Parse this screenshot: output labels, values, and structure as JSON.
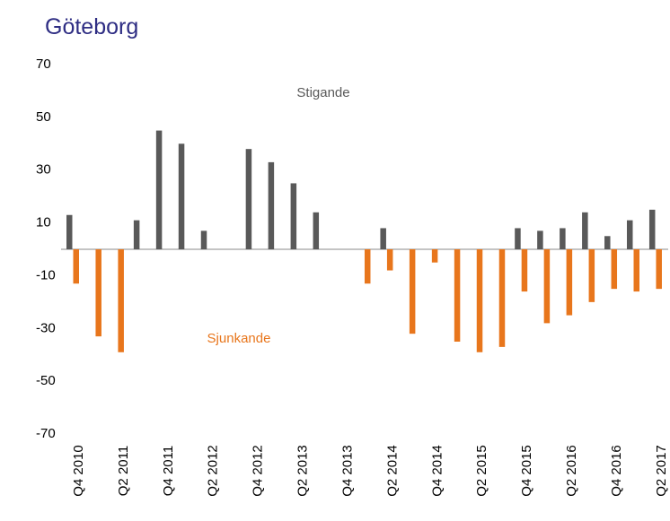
{
  "chart_data": {
    "type": "bar",
    "title": "Göteborg",
    "categories": [
      "Q4 2010",
      null,
      "Q2 2011",
      null,
      "Q4 2011",
      null,
      "Q2 2012",
      null,
      "Q4 2012",
      null,
      "Q2 2013",
      null,
      "Q4 2013",
      null,
      "Q2 2014",
      null,
      "Q4 2014",
      null,
      "Q2 2015",
      null,
      "Q4 2015",
      null,
      "Q2 2016",
      null,
      "Q4 2016",
      null,
      "Q2 2017"
    ],
    "series": [
      {
        "name": "Stigande",
        "color": "#595959",
        "values": [
          13,
          null,
          null,
          11,
          45,
          40,
          7,
          null,
          38,
          33,
          25,
          14,
          null,
          null,
          8,
          null,
          null,
          null,
          null,
          null,
          8,
          7,
          8,
          14,
          5,
          11,
          15
        ]
      },
      {
        "name": "Sjunkande",
        "color": "#e8761c",
        "values": [
          -13,
          -33,
          -39,
          null,
          null,
          null,
          null,
          null,
          null,
          null,
          null,
          null,
          null,
          -13,
          -8,
          -32,
          -5,
          -35,
          -39,
          -37,
          -16,
          -28,
          -25,
          -20,
          -15,
          -16,
          -15
        ]
      }
    ],
    "ylim": [
      -70,
      70
    ],
    "yticks": [
      70,
      50,
      30,
      10,
      -10,
      -30,
      -50,
      -70
    ],
    "grid": false
  }
}
